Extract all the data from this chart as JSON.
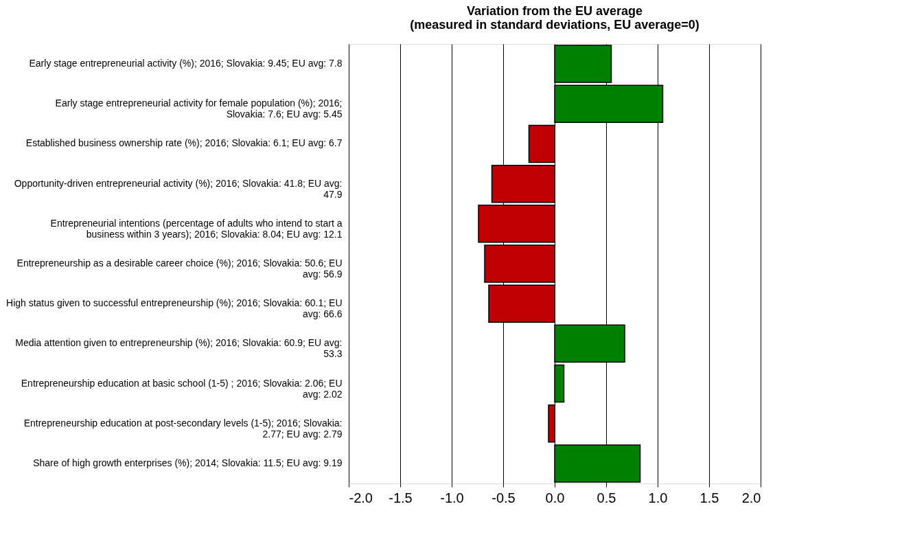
{
  "chart_data": {
    "type": "bar",
    "orientation": "horizontal",
    "title": [
      "Variation from the EU average",
      "(measured in standard deviations, EU average=0)"
    ],
    "categories": [
      "Early stage entrepreneurial activity (%); 2016; Slovakia: 9.45; EU avg: 7.8",
      "Early stage entrepreneurial activity for female population (%); 2016; Slovakia: 7.6; EU avg: 5.45",
      "Established business ownership rate (%); 2016; Slovakia: 6.1; EU avg: 6.7",
      "Opportunity-driven entrepreneurial activity (%); 2016; Slovakia: 41.8; EU avg: 47.9",
      "Entrepreneurial intentions (percentage of adults who intend to start a business within 3 years); 2016; Slovakia: 8.04; EU avg: 12.1",
      "Entrepreneurship as a desirable career choice (%); 2016; Slovakia: 50.6; EU avg: 56.9",
      "High status given to successful entrepreneurship (%); 2016; Slovakia: 60.1; EU avg: 66.6",
      "Media attention given to entrepreneurship (%); 2016; Slovakia: 60.9; EU avg: 53.3",
      "Entrepreneurship education at basic school (1-5) ; 2016; Slovakia: 2.06; EU avg: 2.02",
      "Entrepreneurship education at post-secondary levels (1-5); 2016; Slovakia: 2.77; EU avg: 2.79",
      "Share of high growth enterprises (%); 2014; Slovakia: 11.5; EU avg: 9.19"
    ],
    "values": [
      0.55,
      1.05,
      -0.25,
      -0.61,
      -0.74,
      -0.68,
      -0.64,
      0.68,
      0.09,
      -0.06,
      0.83
    ],
    "colors": [
      "#008000",
      "#008000",
      "#c00000",
      "#c00000",
      "#c00000",
      "#c00000",
      "#c00000",
      "#008000",
      "#008000",
      "#c00000",
      "#008000"
    ],
    "xlim": [
      -2.0,
      2.0
    ],
    "xticks": [
      {
        "value": -2,
        "label": "-2.0"
      },
      {
        "value": -1.5,
        "label": "-1.5"
      },
      {
        "value": -1,
        "label": "-1.0"
      },
      {
        "value": -0.5,
        "label": "-0.5"
      },
      {
        "value": 0,
        "label": "0.0"
      },
      {
        "value": 0.5,
        "label": "0.5"
      },
      {
        "value": 1,
        "label": "1.0"
      },
      {
        "value": 1.5,
        "label": "1.5"
      },
      {
        "value": 2,
        "label": "2.0"
      }
    ],
    "grid": "x"
  }
}
